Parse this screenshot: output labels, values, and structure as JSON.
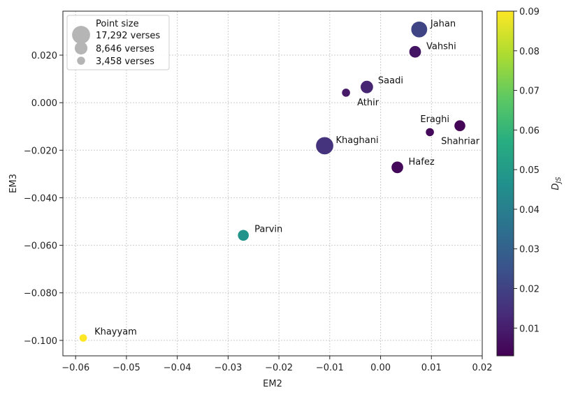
{
  "chart_data": {
    "type": "scatter",
    "xlabel": "EM2",
    "ylabel": "EM3",
    "xlim": [
      -0.0625,
      0.02
    ],
    "ylim": [
      -0.1065,
      0.0385
    ],
    "xticks": [
      -0.06,
      -0.05,
      -0.04,
      -0.03,
      -0.02,
      -0.01,
      0.0,
      0.01,
      0.02
    ],
    "xtick_labels": [
      "−0.06",
      "−0.05",
      "−0.04",
      "−0.03",
      "−0.02",
      "−0.01",
      "0.00",
      "0.01",
      "0.02"
    ],
    "yticks": [
      -0.1,
      -0.08,
      -0.06,
      -0.04,
      -0.02,
      0.0,
      0.02
    ],
    "ytick_labels": [
      "−0.100",
      "−0.080",
      "−0.060",
      "−0.040",
      "−0.020",
      "0.000",
      "0.020"
    ],
    "grid": true,
    "points": [
      {
        "name": "Jahan",
        "x": 0.0076,
        "y": 0.0308,
        "size": 14500,
        "djs": 0.021
      },
      {
        "name": "Vahshi",
        "x": 0.0068,
        "y": 0.0214,
        "size": 8000,
        "djs": 0.008
      },
      {
        "name": "Saadi",
        "x": -0.0027,
        "y": 0.0066,
        "size": 9000,
        "djs": 0.012
      },
      {
        "name": "Athir",
        "x": -0.0068,
        "y": 0.0042,
        "size": 4000,
        "djs": 0.009
      },
      {
        "name": "Eraghi",
        "x": 0.0156,
        "y": -0.0097,
        "size": 7000,
        "djs": 0.004
      },
      {
        "name": "Shahriar",
        "x": 0.0097,
        "y": -0.0124,
        "size": 4000,
        "djs": 0.005
      },
      {
        "name": "Khaghani",
        "x": -0.011,
        "y": -0.0181,
        "size": 17000,
        "djs": 0.016
      },
      {
        "name": "Hafez",
        "x": 0.0033,
        "y": -0.0272,
        "size": 8000,
        "djs": 0.005
      },
      {
        "name": "Parvin",
        "x": -0.027,
        "y": -0.0558,
        "size": 7000,
        "djs": 0.048
      },
      {
        "name": "Khayyam",
        "x": -0.0585,
        "y": -0.099,
        "size": 3458,
        "djs": 0.09
      }
    ],
    "legend": {
      "title": "Point size",
      "placement": "top-left",
      "entries": [
        {
          "label": "17,292 verses",
          "size": 17292
        },
        {
          "label": "8,646 verses",
          "size": 8646
        },
        {
          "label": "3,458 verses",
          "size": 3458
        }
      ]
    },
    "colorbar": {
      "label": "D_JS",
      "label_main": "D",
      "label_sub": "JS",
      "range": [
        0.003,
        0.09
      ],
      "colormap": "viridis",
      "ticks": [
        0.01,
        0.02,
        0.03,
        0.04,
        0.05,
        0.06,
        0.07,
        0.08,
        0.09
      ],
      "tick_labels": [
        "0.01",
        "0.02",
        "0.03",
        "0.04",
        "0.05",
        "0.06",
        "0.07",
        "0.08",
        "0.09"
      ]
    }
  }
}
